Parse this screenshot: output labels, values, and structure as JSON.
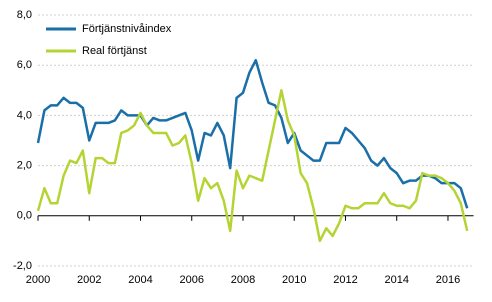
{
  "chart_data": {
    "type": "line",
    "x": [
      2000,
      2000.25,
      2000.5,
      2000.75,
      2001,
      2001.25,
      2001.5,
      2001.75,
      2002,
      2002.25,
      2002.5,
      2002.75,
      2003,
      2003.25,
      2003.5,
      2003.75,
      2004,
      2004.25,
      2004.5,
      2004.75,
      2005,
      2005.25,
      2005.5,
      2005.75,
      2006,
      2006.25,
      2006.5,
      2006.75,
      2007,
      2007.25,
      2007.5,
      2007.75,
      2008,
      2008.25,
      2008.5,
      2008.75,
      2009,
      2009.25,
      2009.5,
      2009.75,
      2010,
      2010.25,
      2010.5,
      2010.75,
      2011,
      2011.25,
      2011.5,
      2011.75,
      2012,
      2012.25,
      2012.5,
      2012.75,
      2013,
      2013.25,
      2013.5,
      2013.75,
      2014,
      2014.25,
      2014.5,
      2014.75,
      2015,
      2015.25,
      2015.5,
      2015.75,
      2016,
      2016.25,
      2016.5,
      2016.75
    ],
    "series": [
      {
        "name": "Förtjänstnivåindex",
        "color": "#1a6fa8",
        "values": [
          2.9,
          4.2,
          4.4,
          4.4,
          4.7,
          4.5,
          4.5,
          4.3,
          3.0,
          3.7,
          3.7,
          3.7,
          3.8,
          4.2,
          4.0,
          4.0,
          4.0,
          3.6,
          3.9,
          3.8,
          3.8,
          3.9,
          4.0,
          4.1,
          3.4,
          2.2,
          3.3,
          3.2,
          3.7,
          3.2,
          1.9,
          4.7,
          4.9,
          5.7,
          6.2,
          5.3,
          4.5,
          4.4,
          3.9,
          2.9,
          3.3,
          2.6,
          2.4,
          2.2,
          2.2,
          2.9,
          2.9,
          2.9,
          3.5,
          3.3,
          3.0,
          2.7,
          2.2,
          2.0,
          2.3,
          1.9,
          1.7,
          1.3,
          1.4,
          1.4,
          1.6,
          1.6,
          1.5,
          1.3,
          1.3,
          1.3,
          1.1,
          0.3
        ]
      },
      {
        "name": "Real förtjänst",
        "color": "#b4d434",
        "values": [
          0.2,
          1.1,
          0.5,
          0.5,
          1.6,
          2.2,
          2.1,
          2.6,
          0.9,
          2.3,
          2.3,
          2.1,
          2.1,
          3.3,
          3.4,
          3.6,
          4.1,
          3.6,
          3.3,
          3.3,
          3.3,
          2.8,
          2.9,
          3.2,
          2.1,
          0.6,
          1.5,
          1.1,
          1.3,
          0.6,
          -0.6,
          1.8,
          1.1,
          1.6,
          1.5,
          1.4,
          2.6,
          3.8,
          5.0,
          3.8,
          3.2,
          1.7,
          1.3,
          0.3,
          -1.0,
          -0.5,
          -0.8,
          -0.3,
          0.4,
          0.3,
          0.3,
          0.5,
          0.5,
          0.5,
          0.9,
          0.5,
          0.4,
          0.4,
          0.3,
          0.6,
          1.7,
          1.6,
          1.6,
          1.5,
          1.3,
          1.0,
          0.5,
          -0.6
        ]
      }
    ],
    "xlim": [
      2000,
      2017
    ],
    "xticks": [
      2000,
      2002,
      2004,
      2006,
      2008,
      2010,
      2012,
      2014,
      2016
    ],
    "ylim": [
      -2,
      8
    ],
    "yticks": [
      {
        "value": -2,
        "label": "-2,0"
      },
      {
        "value": 0,
        "label": "0,0"
      },
      {
        "value": 2,
        "label": "2,0"
      },
      {
        "value": 4,
        "label": "4,0"
      },
      {
        "value": 6,
        "label": "6,0"
      },
      {
        "value": 8,
        "label": "8,0"
      }
    ],
    "grid": true,
    "legend": "upper left"
  }
}
